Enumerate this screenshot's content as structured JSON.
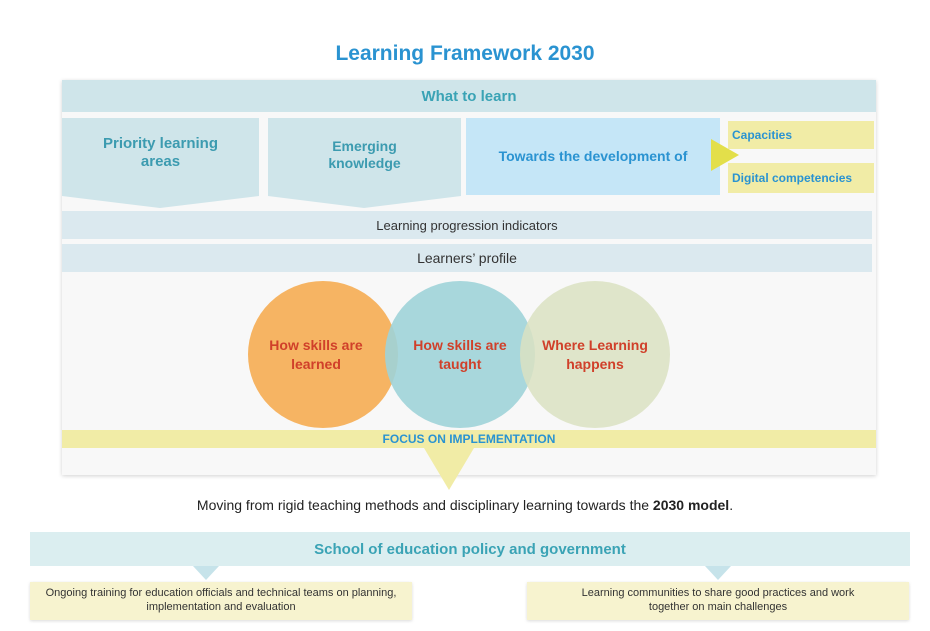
{
  "title": "Learning Framework 2030",
  "what_to_learn": "What to learn",
  "priority_areas": "Priority learning areas",
  "emerging_knowledge": "Emerging knowledge",
  "towards": "Towards the development of",
  "capacities": "Capacities",
  "digital": "Digital competencies",
  "progression": "Learning progression indicators",
  "profile": "Learners’ profile",
  "circles": {
    "learned": "How skills are learned",
    "taught": "How skills are taught",
    "where": "Where Learning happens"
  },
  "focus": "FOCUS ON IMPLEMENTATION",
  "moving": {
    "prefix": "Moving from rigid teaching methods and disciplinary learning towards the ",
    "bold": "2030 model",
    "suffix": "."
  },
  "school": "School of education policy and government",
  "notes": {
    "left": "Ongoing training for education officials and technical teams on planning, implementation and evaluation",
    "right": "Learning communities to share good practices and work together on main challenges"
  },
  "colors": {
    "title": "#2a93d1",
    "teal_text": "#3aa3b5",
    "circle_orange": "#f6b463",
    "circle_teal": "#9fd3d8",
    "circle_sage": "#dbe2c2",
    "circle_text": "#d0402a",
    "arrow_yellow": "#e3df4a"
  }
}
